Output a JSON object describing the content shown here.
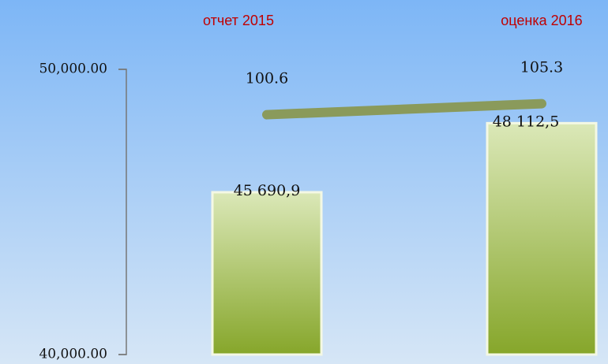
{
  "chart_data": {
    "type": "bar",
    "categories": [
      "отчет 2015",
      "оценка 2016"
    ],
    "series": [
      {
        "type": "bar",
        "color": "#8fae35",
        "values": [
          45690.9,
          48112.5
        ],
        "value_labels": [
          "45 690,9",
          "48 112,5"
        ]
      },
      {
        "type": "line",
        "axis": "y2",
        "color": "#8a9a5b",
        "values": [
          100.6,
          105.3
        ]
      }
    ],
    "ylim": [
      40000,
      50000
    ],
    "yticks": [
      {
        "value": 40000,
        "label": "40,000.00"
      },
      {
        "value": 50000,
        "label": "50,000.00"
      }
    ],
    "y2lim": [
      -2,
      120
    ]
  }
}
